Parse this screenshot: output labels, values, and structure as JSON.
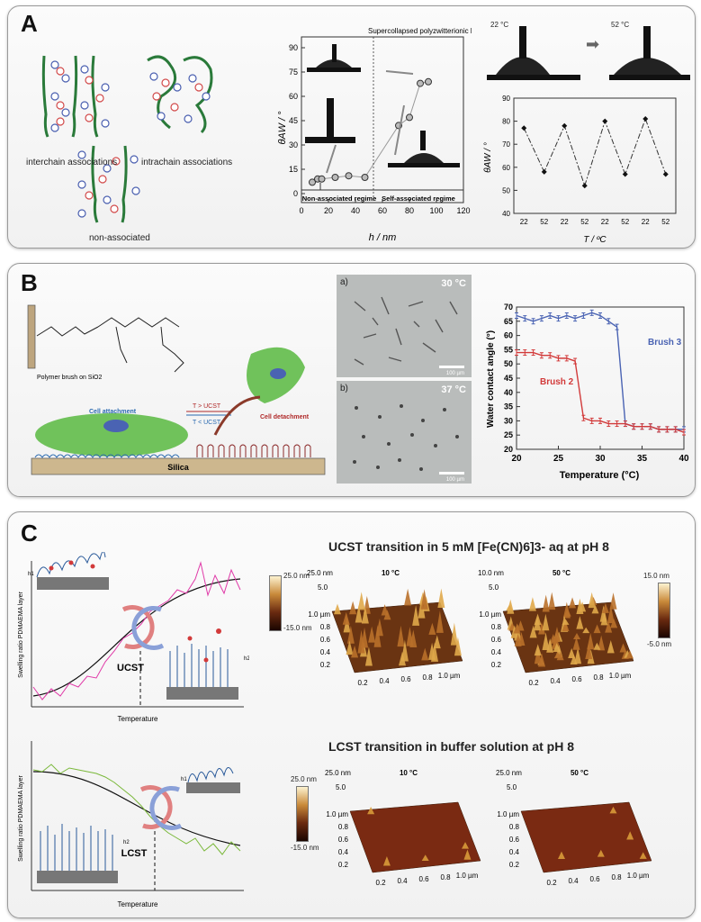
{
  "panel_a": {
    "label": "A",
    "schematic": {
      "interchain": "interchain associations",
      "intrachain": "intrachain associations",
      "nonassociated": "non-associated"
    },
    "chart_data": {
      "type": "scatter",
      "ylabel": "θAW / °",
      "xlabel": "h / nm",
      "xlim": [
        0,
        120
      ],
      "ylim": [
        0,
        90
      ],
      "x_ticks": [
        "0",
        "20",
        "40",
        "60",
        "80",
        "100",
        "120"
      ],
      "y_ticks": [
        "0",
        "15",
        "30",
        "45",
        "60",
        "75",
        "90"
      ],
      "points": [
        [
          8,
          7
        ],
        [
          12,
          9
        ],
        [
          15,
          9
        ],
        [
          25,
          10
        ],
        [
          35,
          11
        ],
        [
          47,
          10
        ],
        [
          72,
          42
        ],
        [
          80,
          47
        ],
        [
          88,
          68
        ],
        [
          94,
          69
        ]
      ],
      "annotations": {
        "supercollapsed": "Supercollapsed polyzwitterionic brush",
        "regime_nonassoc": "Non-associated regime",
        "regime_selfassoc": "Self-associated regime"
      }
    },
    "drops": {
      "t1": "22 °C",
      "t2": "52 °C"
    },
    "chart_cycle": {
      "type": "line",
      "ylabel": "θAW / °",
      "xlabel": "T / ºC",
      "categories": [
        "22",
        "52",
        "22",
        "52",
        "22",
        "52",
        "22",
        "52"
      ],
      "values": [
        77,
        58,
        78,
        52,
        80,
        57,
        81,
        57
      ],
      "ylim": [
        40,
        90
      ],
      "y_ticks": [
        "40",
        "50",
        "60",
        "70",
        "80",
        "90"
      ]
    }
  },
  "panel_b": {
    "label": "B",
    "molecule_caption": "Polymer brush on SiO2",
    "scheme": {
      "cell_attachment": "Cell attachment",
      "cell_detachment": "Cell detachment",
      "t_gt": "T > UCST",
      "t_lt": "T < UCST",
      "substrate": "Silica"
    },
    "micro_a": {
      "tag": "a)",
      "temp": "30 °C",
      "scale": "100 µm"
    },
    "micro_b": {
      "tag": "b)",
      "temp": "37 °C",
      "scale": "100 µm"
    },
    "chart_data": {
      "type": "line",
      "xlabel": "Temperature (°C)",
      "ylabel": "Water contact angle (°)",
      "xlim": [
        20,
        40
      ],
      "ylim": [
        20,
        70
      ],
      "x_ticks": [
        "20",
        "25",
        "30",
        "35",
        "40"
      ],
      "y_ticks": [
        "20",
        "25",
        "30",
        "35",
        "40",
        "45",
        "50",
        "55",
        "60",
        "65",
        "70"
      ],
      "series": [
        {
          "name": "Brush 3",
          "color": "#4a63b3",
          "x": [
            20,
            21,
            22,
            23,
            24,
            25,
            26,
            27,
            28,
            29,
            30,
            31,
            32,
            33,
            34,
            35,
            36,
            37,
            38,
            39,
            40
          ],
          "y": [
            67,
            66,
            65,
            66,
            67,
            66,
            67,
            66,
            67,
            68,
            67,
            65,
            63,
            29,
            28,
            28,
            28,
            27,
            27,
            27,
            27
          ]
        },
        {
          "name": "Brush 2",
          "color": "#d23a3a",
          "x": [
            20,
            21,
            22,
            23,
            24,
            25,
            26,
            27,
            28,
            29,
            30,
            31,
            32,
            33,
            34,
            35,
            36,
            37,
            38,
            39,
            40
          ],
          "y": [
            54,
            54,
            54,
            53,
            53,
            52,
            52,
            51,
            31,
            30,
            30,
            29,
            29,
            29,
            28,
            28,
            28,
            27,
            27,
            27,
            26
          ]
        }
      ]
    }
  },
  "panel_c": {
    "label": "C",
    "ucst_title": "UCST transition in 5 mM [Fe(CN)6]3- aq at pH 8",
    "lcst_title": "LCST transition in buffer solution at pH 8",
    "ucst_plot": {
      "ylabel": "Swelling ratio PDMAEMA layer",
      "xlabel": "Temperature",
      "marker": "UCST",
      "h1": "h1",
      "h2": "h2"
    },
    "lcst_plot": {
      "ylabel": "Swelling ratio PDMAEMA layer",
      "xlabel": "Temperature",
      "marker": "LCST",
      "h1": "h1",
      "h2": "h2"
    },
    "afm_ucst": {
      "left": {
        "temp": "10 °C",
        "ztop": "25.0 nm",
        "z2": "5.0",
        "axis": [
          "1.0 µm",
          "0.8",
          "0.6",
          "0.4",
          "0.2"
        ],
        "xaxis": [
          "0.2",
          "0.4",
          "0.6",
          "0.8",
          "1.0 µm"
        ]
      },
      "right": {
        "temp": "50 °C",
        "ztop": "10.0 nm",
        "z2": "5.0",
        "axis": [
          "1.0 µm",
          "0.8",
          "0.6",
          "0.4",
          "0.2"
        ],
        "xaxis": [
          "0.2",
          "0.4",
          "0.6",
          "0.8",
          "1.0 µm"
        ]
      },
      "scale_left": {
        "max": "25.0 nm",
        "min": "-15.0 nm"
      },
      "scale_right": {
        "max": "15.0 nm",
        "min": "-5.0 nm"
      }
    },
    "afm_lcst": {
      "left": {
        "temp": "10 °C",
        "ztop": "25.0 nm",
        "z2": "5.0",
        "axis": [
          "1.0 µm",
          "0.8",
          "0.6",
          "0.4",
          "0.2"
        ],
        "xaxis": [
          "0.2",
          "0.4",
          "0.6",
          "0.8",
          "1.0 µm"
        ]
      },
      "right": {
        "temp": "50 °C",
        "ztop": "25.0 nm",
        "z2": "5.0",
        "axis": [
          "1.0 µm",
          "0.8",
          "0.6",
          "0.4",
          "0.2"
        ],
        "xaxis": [
          "0.2",
          "0.4",
          "0.6",
          "0.8",
          "1.0 µm"
        ]
      },
      "scale": {
        "max": "25.0 nm",
        "min": "-15.0 nm"
      }
    }
  }
}
